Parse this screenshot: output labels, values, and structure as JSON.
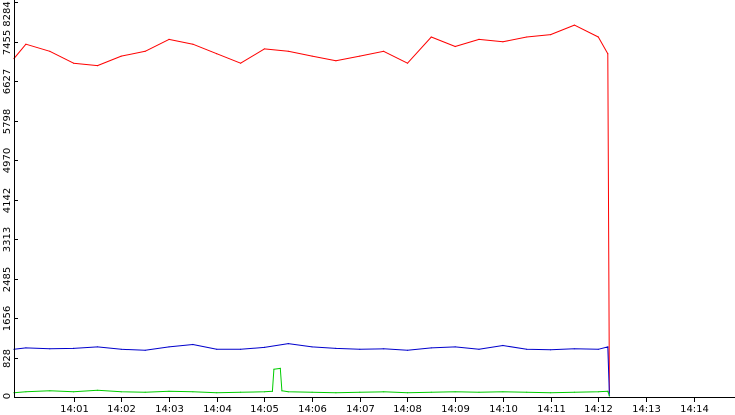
{
  "chart_data": {
    "type": "line",
    "title": "",
    "xlabel": "",
    "ylabel": "",
    "xlim": [
      "13:59:45",
      "14:14:52"
    ],
    "ylim": [
      0,
      8284
    ],
    "grid": false,
    "legend": "none",
    "x_ticks": [
      "14:01",
      "14:02",
      "14:03",
      "14:04",
      "14:05",
      "14:06",
      "14:07",
      "14:08",
      "14:09",
      "14:10",
      "14:11",
      "14:12",
      "14:13",
      "14:14"
    ],
    "y_ticks": [
      "0",
      "828",
      "1656",
      "2485",
      "3313",
      "4142",
      "4970",
      "5798",
      "6627",
      "7455",
      "8284"
    ],
    "series": [
      {
        "color": "#ff0000",
        "x": [
          "13:59:45",
          "14:00:00",
          "14:00:30",
          "14:01:00",
          "14:01:30",
          "14:02:00",
          "14:02:30",
          "14:03:00",
          "14:03:30",
          "14:04:00",
          "14:04:30",
          "14:05:00",
          "14:05:30",
          "14:06:00",
          "14:06:30",
          "14:07:00",
          "14:07:30",
          "14:08:00",
          "14:08:30",
          "14:09:00",
          "14:09:30",
          "14:10:00",
          "14:10:30",
          "14:11:00",
          "14:11:30",
          "14:12:00",
          "14:12:12",
          "14:12:14"
        ],
        "values": [
          7100,
          7400,
          7250,
          7000,
          6950,
          7150,
          7250,
          7500,
          7400,
          7200,
          7000,
          7300,
          7250,
          7150,
          7050,
          7150,
          7250,
          7000,
          7550,
          7350,
          7500,
          7450,
          7550,
          7600,
          7800,
          7550,
          7200,
          100
        ]
      },
      {
        "color": "#0000cc",
        "x": [
          "13:59:45",
          "14:00:00",
          "14:00:30",
          "14:01:00",
          "14:01:30",
          "14:02:00",
          "14:02:30",
          "14:03:00",
          "14:03:30",
          "14:04:00",
          "14:04:30",
          "14:05:00",
          "14:05:30",
          "14:06:00",
          "14:06:30",
          "14:07:00",
          "14:07:30",
          "14:08:00",
          "14:08:30",
          "14:09:00",
          "14:09:30",
          "14:10:00",
          "14:10:30",
          "14:11:00",
          "14:11:30",
          "14:12:00",
          "14:12:12",
          "14:12:14"
        ],
        "values": [
          1000,
          1030,
          1010,
          1020,
          1050,
          1000,
          980,
          1050,
          1100,
          1000,
          1000,
          1040,
          1120,
          1050,
          1020,
          1000,
          1010,
          980,
          1030,
          1050,
          1000,
          1080,
          1000,
          990,
          1010,
          1000,
          1050,
          30
        ]
      },
      {
        "color": "#00cc00",
        "x": [
          "13:59:45",
          "14:00:00",
          "14:00:30",
          "14:01:00",
          "14:01:30",
          "14:02:00",
          "14:02:30",
          "14:03:00",
          "14:03:30",
          "14:04:00",
          "14:04:30",
          "14:05:00",
          "14:05:10",
          "14:05:12",
          "14:05:20",
          "14:05:22",
          "14:05:30",
          "14:06:00",
          "14:06:30",
          "14:07:00",
          "14:07:30",
          "14:08:00",
          "14:08:30",
          "14:09:00",
          "14:09:30",
          "14:10:00",
          "14:10:30",
          "14:11:00",
          "14:11:30",
          "14:12:00",
          "14:12:12",
          "14:12:14"
        ],
        "values": [
          90,
          110,
          130,
          110,
          140,
          110,
          100,
          120,
          110,
          90,
          100,
          110,
          120,
          580,
          600,
          130,
          110,
          100,
          90,
          100,
          110,
          90,
          100,
          110,
          100,
          110,
          100,
          90,
          100,
          110,
          120,
          20
        ]
      }
    ]
  }
}
